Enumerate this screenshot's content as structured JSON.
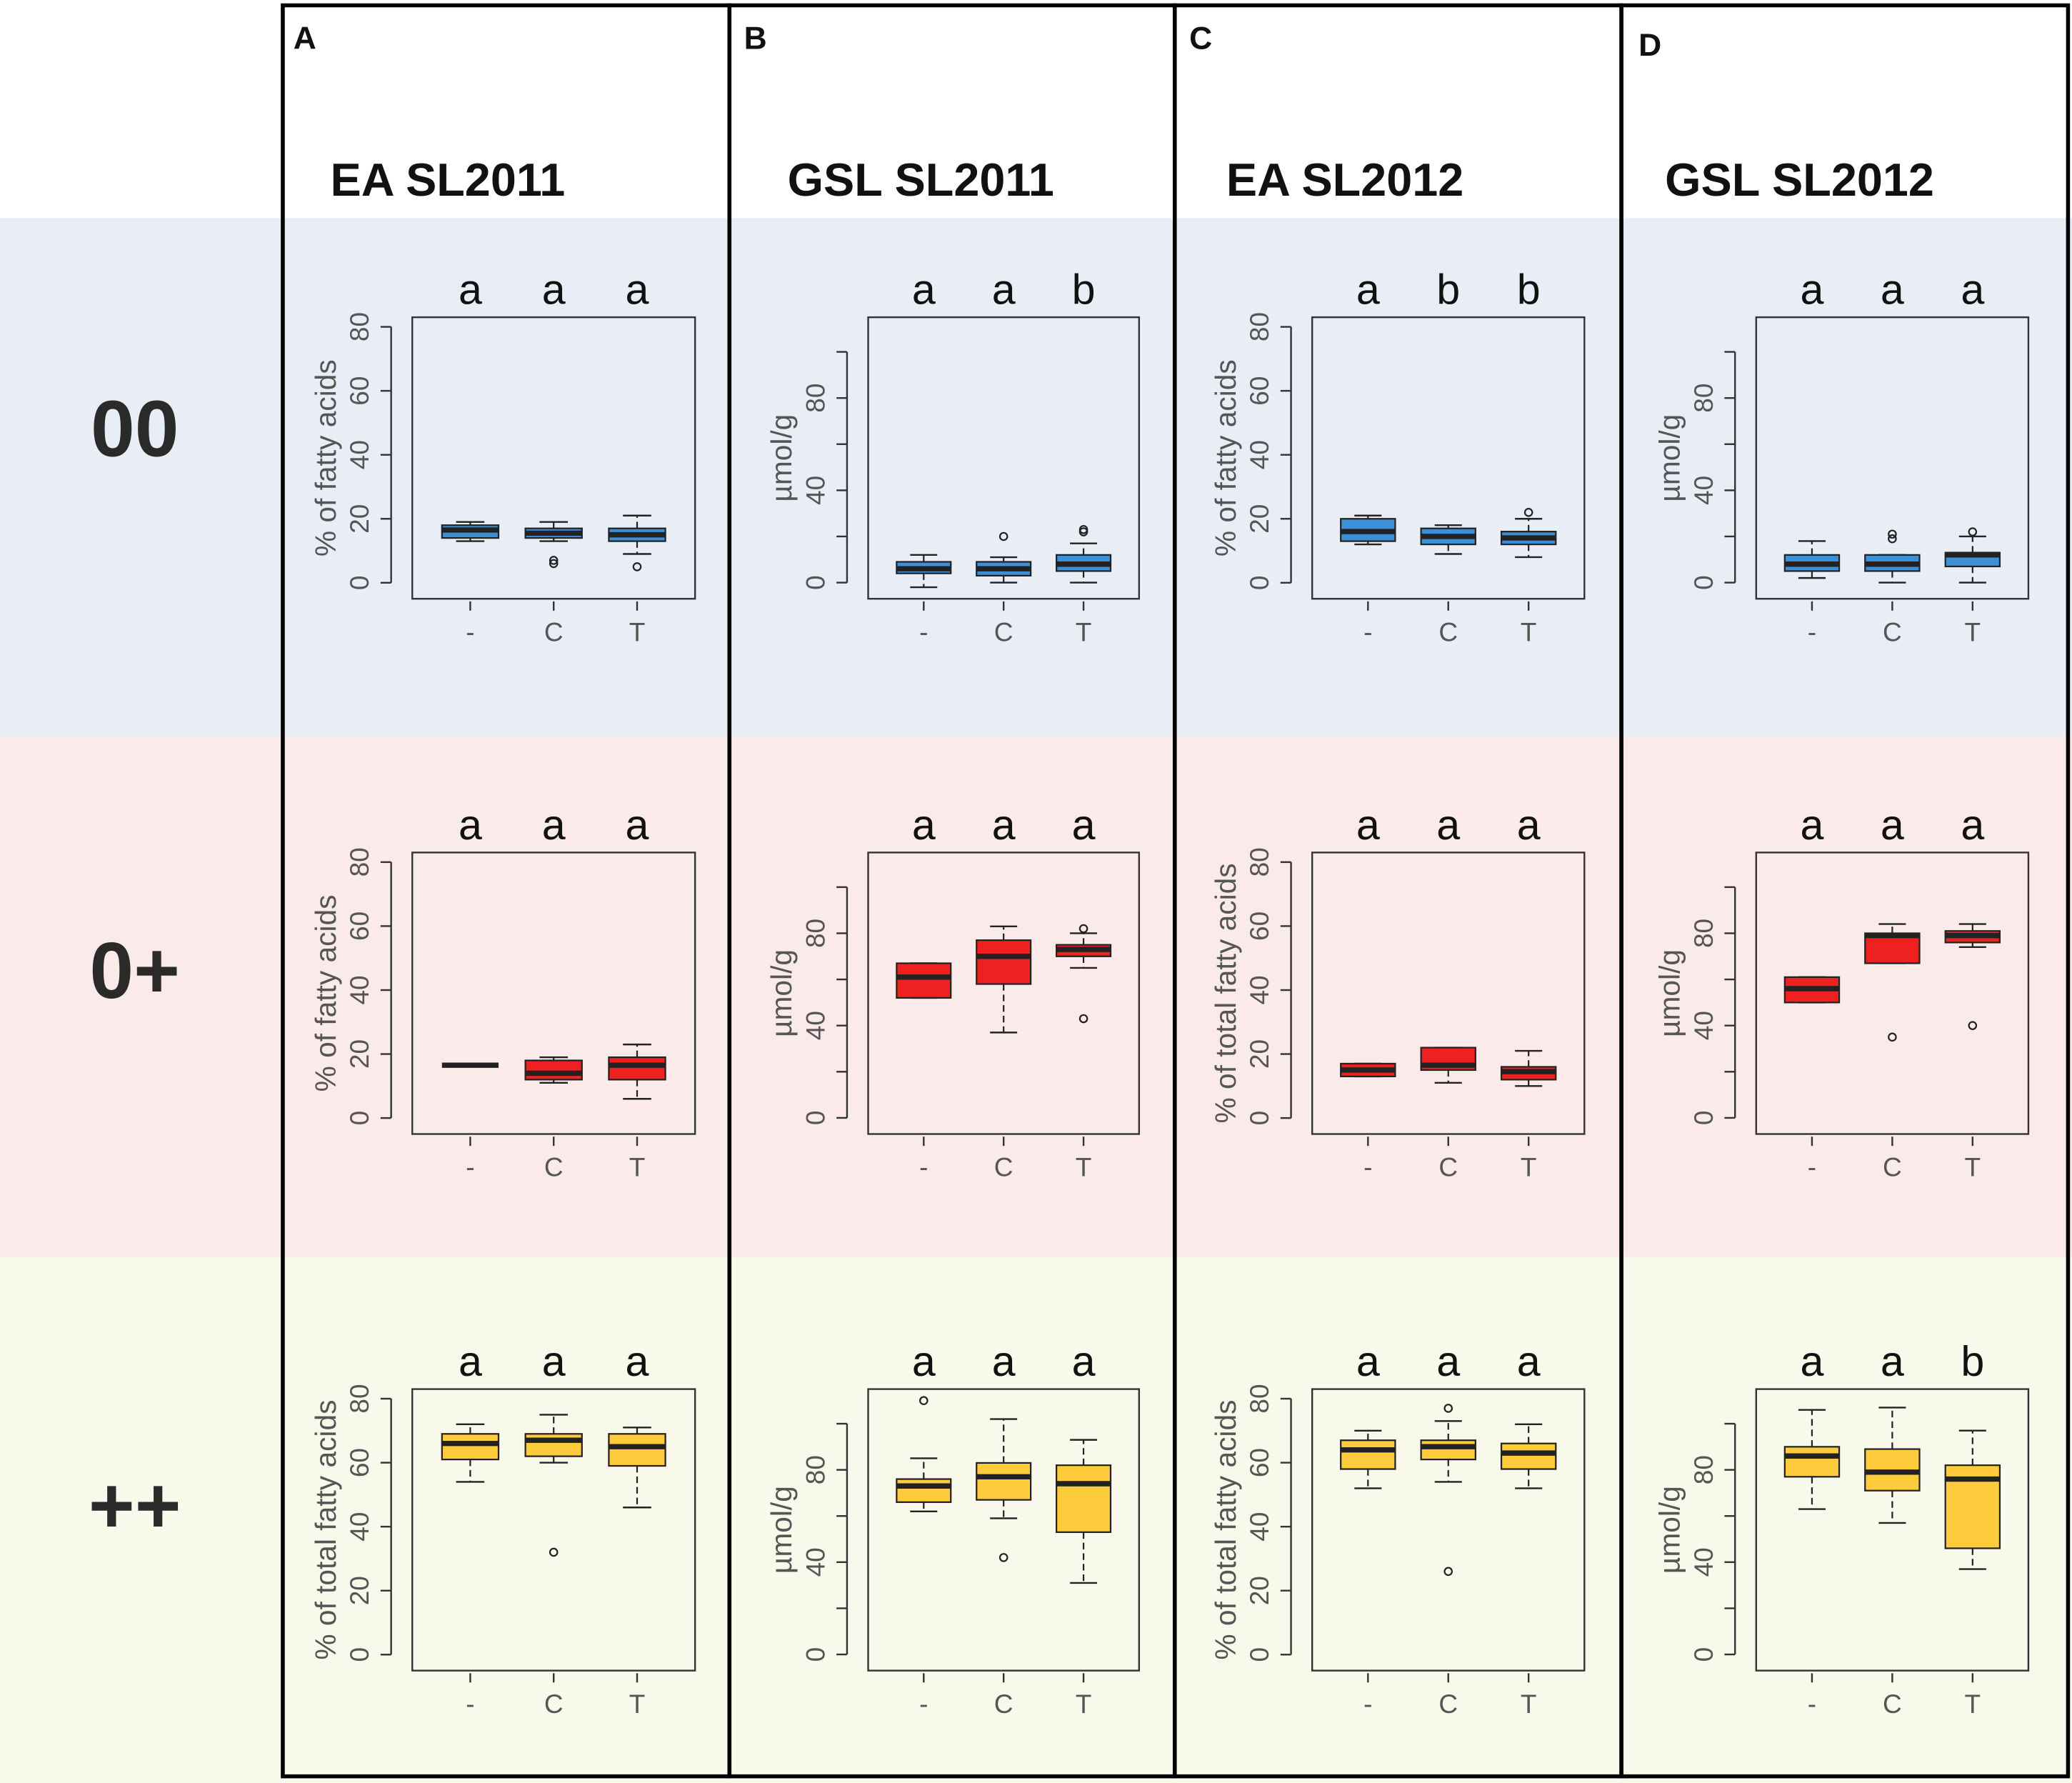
{
  "panels": [
    {
      "letter": "A",
      "title": "EA SL2011"
    },
    {
      "letter": "B",
      "title": "GSL SL2011"
    },
    {
      "letter": "C",
      "title": "EA SL2012"
    },
    {
      "letter": "D",
      "title": "GSL SL2012"
    }
  ],
  "rows": [
    "00",
    "0+",
    "++"
  ],
  "chart_data": [
    {
      "type": "box",
      "ylabel": "% of fatty acids",
      "categories": [
        "-",
        "C",
        "T"
      ],
      "letters": [
        "a",
        "a",
        "a"
      ],
      "color": "#3d8fd6",
      "ylim": [
        -5,
        83
      ],
      "yticks": [
        0,
        20,
        40,
        60,
        80
      ],
      "boxes": [
        {
          "min": 13,
          "q1": 14,
          "median": 16.5,
          "q3": 18,
          "max": 19,
          "outliers": []
        },
        {
          "min": 13,
          "q1": 14,
          "median": 15.5,
          "q3": 17,
          "max": 19,
          "outliers": [
            7,
            6
          ]
        },
        {
          "min": 9,
          "q1": 13,
          "median": 15,
          "q3": 17,
          "max": 21,
          "outliers": [
            5
          ]
        }
      ]
    },
    {
      "type": "box",
      "ylabel": "µmol/g",
      "categories": [
        "-",
        "C",
        "T"
      ],
      "letters": [
        "a",
        "a",
        "b"
      ],
      "color": "#3d8fd6",
      "ylim": [
        -7,
        115
      ],
      "yticks": [
        0,
        40,
        80
      ],
      "yminor": [
        20,
        60,
        100
      ],
      "boxes": [
        {
          "min": -2,
          "q1": 4,
          "median": 6,
          "q3": 9,
          "max": 12,
          "outliers": []
        },
        {
          "min": 0,
          "q1": 3,
          "median": 6,
          "q3": 9,
          "max": 11,
          "outliers": [
            20
          ]
        },
        {
          "min": 0,
          "q1": 5,
          "median": 8,
          "q3": 12,
          "max": 17,
          "outliers": [
            22,
            23
          ]
        }
      ]
    },
    {
      "type": "box",
      "ylabel": "% of fatty acids",
      "categories": [
        "-",
        "C",
        "T"
      ],
      "letters": [
        "a",
        "b",
        "b"
      ],
      "color": "#3d8fd6",
      "ylim": [
        -5,
        83
      ],
      "yticks": [
        0,
        20,
        40,
        60,
        80
      ],
      "boxes": [
        {
          "min": 12,
          "q1": 13,
          "median": 16,
          "q3": 20,
          "max": 21,
          "outliers": []
        },
        {
          "min": 9,
          "q1": 12,
          "median": 14.5,
          "q3": 17,
          "max": 18,
          "outliers": []
        },
        {
          "min": 8,
          "q1": 12,
          "median": 14,
          "q3": 16,
          "max": 20,
          "outliers": [
            22
          ]
        }
      ]
    },
    {
      "type": "box",
      "ylabel": "µmol/g",
      "categories": [
        "-",
        "C",
        "T"
      ],
      "letters": [
        "a",
        "a",
        "a"
      ],
      "color": "#3d8fd6",
      "ylim": [
        -7,
        115
      ],
      "yticks": [
        0,
        40,
        80
      ],
      "yminor": [
        20,
        60,
        100
      ],
      "boxes": [
        {
          "min": 2,
          "q1": 5,
          "median": 8,
          "q3": 12,
          "max": 18,
          "outliers": []
        },
        {
          "min": 0,
          "q1": 5,
          "median": 8,
          "q3": 12,
          "max": 12,
          "outliers": [
            19,
            21
          ]
        },
        {
          "min": 0,
          "q1": 7,
          "median": 12,
          "q3": 13,
          "max": 20,
          "outliers": [
            22
          ]
        }
      ]
    },
    {
      "type": "box",
      "ylabel": "% of fatty acids",
      "categories": [
        "-",
        "C",
        "T"
      ],
      "letters": [
        "a",
        "a",
        "a"
      ],
      "color": "#ee2020",
      "ylim": [
        -5,
        83
      ],
      "yticks": [
        0,
        20,
        40,
        60,
        80
      ],
      "boxes": [
        {
          "min": 16.5,
          "q1": 16.5,
          "median": 16.5,
          "q3": 16.5,
          "max": 16.5,
          "outliers": []
        },
        {
          "min": 11,
          "q1": 12,
          "median": 14,
          "q3": 18,
          "max": 19,
          "outliers": []
        },
        {
          "min": 6,
          "q1": 12,
          "median": 16.5,
          "q3": 19,
          "max": 23,
          "outliers": []
        }
      ]
    },
    {
      "type": "box",
      "ylabel": "µmol/g",
      "categories": [
        "-",
        "C",
        "T"
      ],
      "letters": [
        "a",
        "a",
        "a"
      ],
      "color": "#ee2020",
      "ylim": [
        -7,
        115
      ],
      "yticks": [
        0,
        40,
        80
      ],
      "yminor": [
        20,
        60,
        100
      ],
      "boxes": [
        {
          "min": 52,
          "q1": 52,
          "median": 61,
          "q3": 67,
          "max": 67,
          "outliers": []
        },
        {
          "min": 37,
          "q1": 58,
          "median": 70,
          "q3": 77,
          "max": 83,
          "outliers": []
        },
        {
          "min": 65,
          "q1": 70,
          "median": 73,
          "q3": 75,
          "max": 80,
          "outliers": [
            82,
            43
          ]
        }
      ]
    },
    {
      "type": "box",
      "ylabel": "% of total fatty acids",
      "categories": [
        "-",
        "C",
        "T"
      ],
      "letters": [
        "a",
        "a",
        "a"
      ],
      "color": "#ee2020",
      "ylim": [
        -5,
        83
      ],
      "yticks": [
        0,
        20,
        40,
        60,
        80
      ],
      "boxes": [
        {
          "min": 13,
          "q1": 13,
          "median": 15,
          "q3": 17,
          "max": 17,
          "outliers": []
        },
        {
          "min": 11,
          "q1": 15,
          "median": 16.5,
          "q3": 22,
          "max": 22,
          "outliers": []
        },
        {
          "min": 10,
          "q1": 12,
          "median": 14.5,
          "q3": 16,
          "max": 21,
          "outliers": []
        }
      ]
    },
    {
      "type": "box",
      "ylabel": "µmol/g",
      "categories": [
        "-",
        "C",
        "T"
      ],
      "letters": [
        "a",
        "a",
        "a"
      ],
      "color": "#ee2020",
      "ylim": [
        -7,
        115
      ],
      "yticks": [
        0,
        40,
        80
      ],
      "yminor": [
        20,
        60,
        100
      ],
      "boxes": [
        {
          "min": 50,
          "q1": 50,
          "median": 56,
          "q3": 61,
          "max": 61,
          "outliers": []
        },
        {
          "min": 67,
          "q1": 67,
          "median": 79,
          "q3": 80,
          "max": 84,
          "outliers": [
            35
          ]
        },
        {
          "min": 74,
          "q1": 76,
          "median": 79,
          "q3": 81,
          "max": 84,
          "outliers": [
            40
          ]
        }
      ]
    },
    {
      "type": "box",
      "ylabel": "% of total fatty acids",
      "categories": [
        "-",
        "C",
        "T"
      ],
      "letters": [
        "a",
        "a",
        "a"
      ],
      "color": "#fdcb3b",
      "ylim": [
        -5,
        83
      ],
      "yticks": [
        0,
        20,
        40,
        60,
        80
      ],
      "boxes": [
        {
          "min": 54,
          "q1": 61,
          "median": 66,
          "q3": 69,
          "max": 72,
          "outliers": []
        },
        {
          "min": 60,
          "q1": 62,
          "median": 67,
          "q3": 69,
          "max": 75,
          "outliers": [
            32
          ]
        },
        {
          "min": 46,
          "q1": 59,
          "median": 65,
          "q3": 69,
          "max": 71,
          "outliers": []
        }
      ]
    },
    {
      "type": "box",
      "ylabel": "µmol/g",
      "categories": [
        "-",
        "C",
        "T"
      ],
      "letters": [
        "a",
        "a",
        "a"
      ],
      "color": "#fdcb3b",
      "ylim": [
        -7,
        115
      ],
      "yticks": [
        0,
        40,
        80
      ],
      "yminor": [
        20,
        60,
        100
      ],
      "boxes": [
        {
          "min": 62,
          "q1": 66,
          "median": 73,
          "q3": 76,
          "max": 85,
          "outliers": [
            110
          ]
        },
        {
          "min": 59,
          "q1": 67,
          "median": 77,
          "q3": 83,
          "max": 102,
          "outliers": [
            42
          ]
        },
        {
          "min": 31,
          "q1": 53,
          "median": 74,
          "q3": 82,
          "max": 93,
          "outliers": []
        }
      ]
    },
    {
      "type": "box",
      "ylabel": "% of total fatty acids",
      "categories": [
        "-",
        "C",
        "T"
      ],
      "letters": [
        "a",
        "a",
        "a"
      ],
      "color": "#fdcb3b",
      "ylim": [
        -5,
        83
      ],
      "yticks": [
        0,
        20,
        40,
        60,
        80
      ],
      "boxes": [
        {
          "min": 52,
          "q1": 58,
          "median": 64,
          "q3": 67,
          "max": 70,
          "outliers": []
        },
        {
          "min": 54,
          "q1": 61,
          "median": 65,
          "q3": 67,
          "max": 73,
          "outliers": [
            77,
            26
          ]
        },
        {
          "min": 52,
          "q1": 58,
          "median": 63,
          "q3": 66,
          "max": 72,
          "outliers": []
        }
      ]
    },
    {
      "type": "box",
      "ylabel": "µmol/g",
      "categories": [
        "-",
        "C",
        "T"
      ],
      "letters": [
        "a",
        "a",
        "b"
      ],
      "color": "#fdcb3b",
      "ylim": [
        -7,
        115
      ],
      "yticks": [
        0,
        40,
        80
      ],
      "yminor": [
        20,
        60,
        100
      ],
      "boxes": [
        {
          "min": 63,
          "q1": 77,
          "median": 86,
          "q3": 90,
          "max": 106,
          "outliers": []
        },
        {
          "min": 57,
          "q1": 71,
          "median": 79,
          "q3": 89,
          "max": 107,
          "outliers": []
        },
        {
          "min": 37,
          "q1": 46,
          "median": 76,
          "q3": 82,
          "max": 97,
          "outliers": []
        }
      ]
    }
  ]
}
